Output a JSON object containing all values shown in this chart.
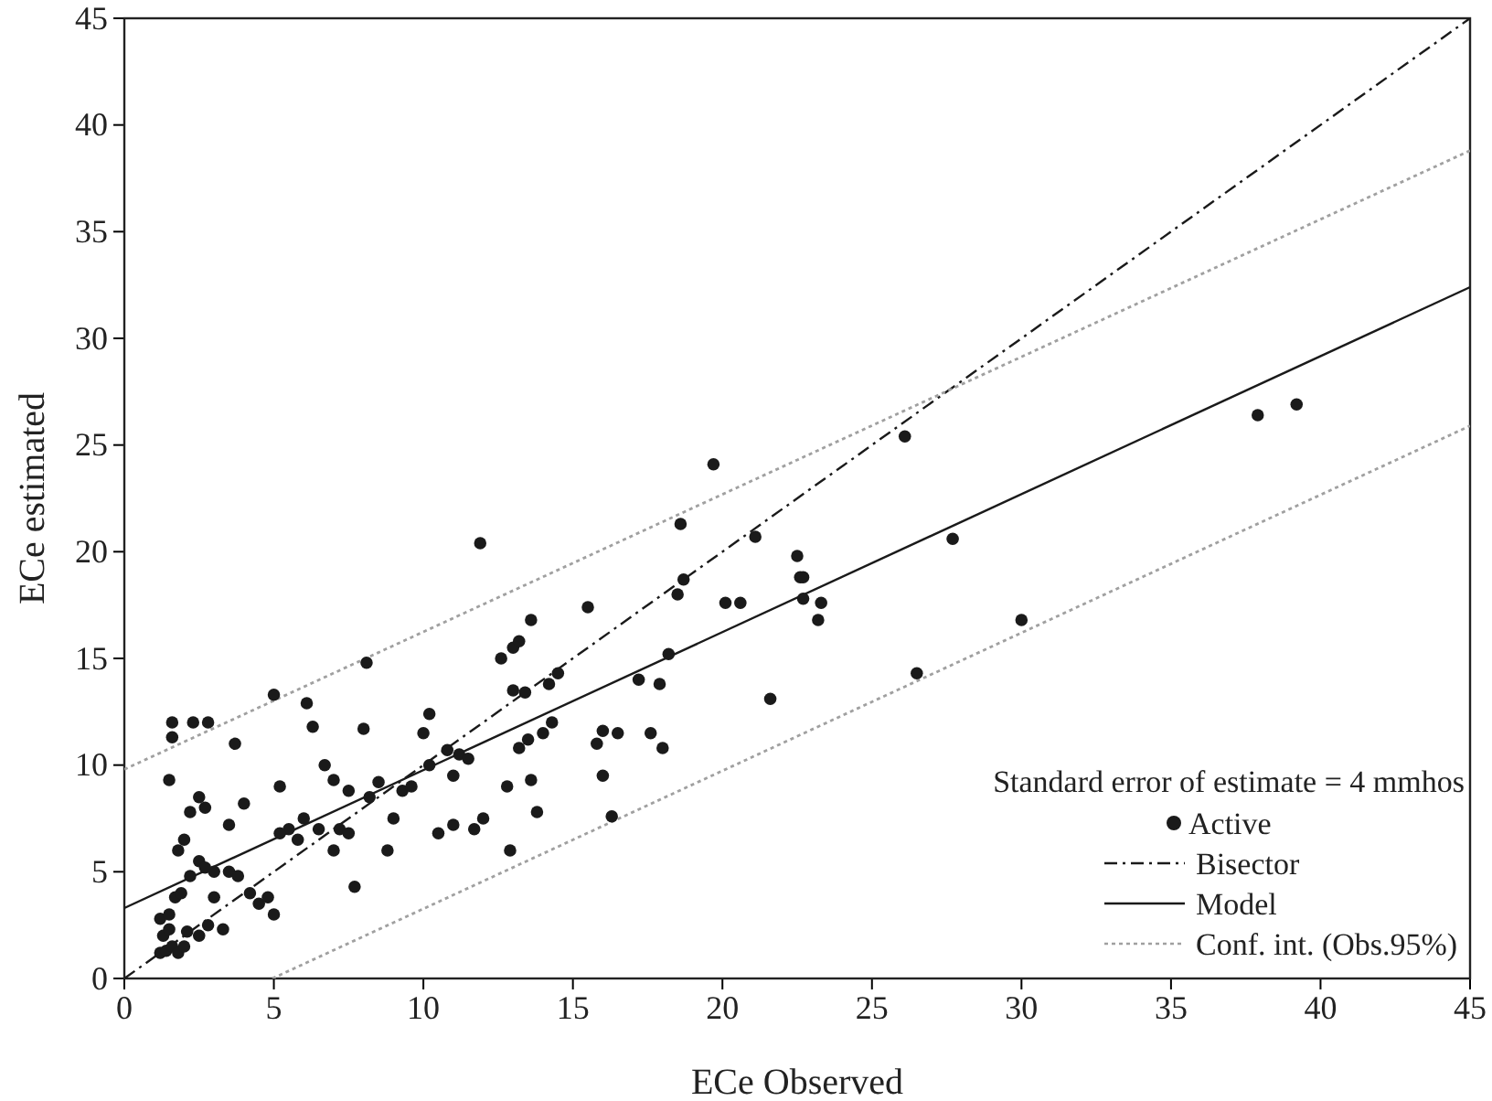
{
  "chart_data": {
    "type": "scatter",
    "xlabel": "ECe Observed",
    "ylabel": "ECe estimated",
    "xlim": [
      0,
      45
    ],
    "ylim": [
      0,
      45
    ],
    "xticks": [
      0,
      5,
      10,
      15,
      20,
      25,
      30,
      35,
      40,
      45
    ],
    "yticks": [
      0,
      5,
      10,
      15,
      20,
      25,
      30,
      35,
      40,
      45
    ],
    "grid": false,
    "legend": "bottom right",
    "annotations": [
      "Standard error of estimate = 4 mmhos"
    ],
    "series": [
      {
        "name": "Active",
        "marker": "circle",
        "color": "#1a1a1a",
        "x": [
          1.2,
          1.4,
          1.6,
          1.3,
          1.5,
          1.8,
          2.0,
          2.1,
          1.2,
          1.5,
          1.7,
          1.9,
          2.2,
          2.5,
          2.7,
          3.0,
          2.5,
          2.8,
          3.3,
          3.0,
          1.5,
          1.6,
          1.6,
          2.3,
          2.8,
          1.8,
          2.0,
          2.2,
          2.5,
          2.7,
          3.5,
          3.8,
          4.2,
          4.5,
          4.8,
          3.5,
          4.0,
          3.7,
          5.0,
          5.2,
          5.5,
          5.2,
          5.0,
          5.8,
          6.0,
          6.1,
          6.5,
          6.3,
          6.7,
          7.0,
          7.2,
          7.0,
          7.5,
          7.5,
          7.7,
          8.0,
          8.1,
          8.2,
          8.5,
          8.8,
          9.0,
          9.3,
          9.6,
          10.0,
          10.2,
          10.2,
          10.5,
          10.8,
          11.0,
          11.0,
          11.2,
          11.5,
          11.7,
          11.9,
          12.0,
          12.6,
          12.8,
          12.9,
          13.0,
          13.0,
          13.2,
          13.4,
          13.6,
          13.2,
          13.5,
          13.6,
          13.8,
          14.0,
          14.2,
          14.5,
          14.3,
          15.5,
          15.8,
          16.0,
          16.0,
          16.3,
          16.5,
          17.2,
          17.6,
          18.0,
          17.9,
          18.2,
          18.5,
          18.6,
          18.7,
          19.7,
          20.1,
          20.6,
          21.1,
          21.6,
          22.5,
          22.6,
          22.7,
          22.7,
          23.3,
          23.2,
          26.1,
          26.5,
          27.7,
          30.0,
          37.9,
          39.2
        ],
        "values": [
          1.2,
          1.3,
          1.5,
          2.0,
          2.3,
          1.2,
          1.5,
          2.2,
          2.8,
          3.0,
          3.8,
          4.0,
          4.8,
          5.5,
          5.2,
          5.0,
          2.0,
          2.5,
          2.3,
          3.8,
          9.3,
          11.3,
          12.0,
          12.0,
          12.0,
          6.0,
          6.5,
          7.8,
          8.5,
          8.0,
          5.0,
          4.8,
          4.0,
          3.5,
          3.8,
          7.2,
          8.2,
          11.0,
          13.3,
          9.0,
          7.0,
          6.8,
          3.0,
          6.5,
          7.5,
          12.9,
          7.0,
          11.8,
          10.0,
          9.3,
          7.0,
          6.0,
          6.8,
          8.8,
          4.3,
          11.7,
          14.8,
          8.5,
          9.2,
          6.0,
          7.5,
          8.8,
          9.0,
          11.5,
          12.4,
          10.0,
          6.8,
          10.7,
          7.2,
          9.5,
          10.5,
          10.3,
          7.0,
          20.4,
          7.5,
          15.0,
          9.0,
          6.0,
          13.5,
          15.5,
          15.8,
          13.4,
          16.8,
          10.8,
          11.2,
          9.3,
          7.8,
          11.5,
          13.8,
          14.3,
          12.0,
          17.4,
          11.0,
          11.6,
          9.5,
          7.6,
          11.5,
          14.0,
          11.5,
          10.8,
          13.8,
          15.2,
          18.0,
          21.3,
          18.7,
          24.1,
          17.6,
          17.6,
          20.7,
          13.1,
          19.8,
          18.8,
          18.8,
          17.8,
          17.6,
          16.8,
          25.4,
          14.3,
          20.6,
          16.8,
          26.4,
          26.9
        ]
      },
      {
        "name": "Bisector",
        "type": "line",
        "line_style": "dashed",
        "color": "#1a1a1a",
        "x": [
          0,
          45
        ],
        "values": [
          0,
          45
        ]
      },
      {
        "name": "Model",
        "type": "line",
        "line_style": "solid",
        "color": "#1a1a1a",
        "x": [
          0,
          45
        ],
        "values": [
          3.3,
          32.4
        ]
      },
      {
        "name": "Conf. int. (Obs.95%)",
        "type": "line",
        "line_style": "dotted",
        "color": "#a0a0a0",
        "x": [
          0,
          45
        ],
        "values": [
          9.8,
          38.8
        ]
      },
      {
        "type": "line",
        "line_style": "dotted",
        "color": "#a0a0a0",
        "x": [
          4.95,
          45
        ],
        "values": [
          0,
          25.9
        ]
      }
    ]
  }
}
